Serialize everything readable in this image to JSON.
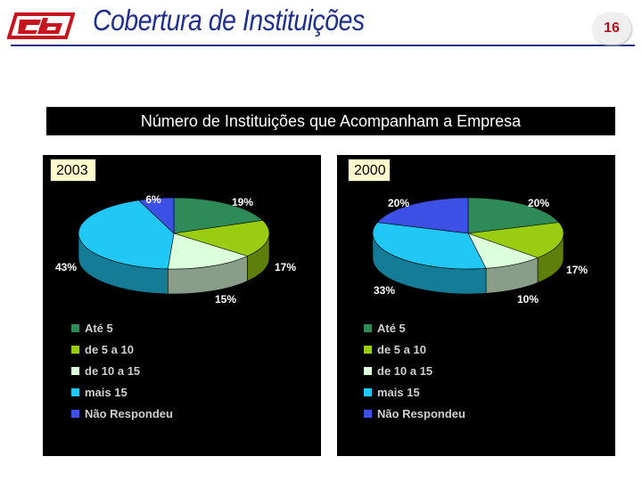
{
  "header": {
    "title": "Cobertura de Instituições",
    "page_number": "16"
  },
  "subtitle": "Número de Instituições que Acompanham a Empresa",
  "colors": {
    "title": "#1e2f8c",
    "brand_red": "#c8141e",
    "Até 5": "#2e8b57",
    "de 5 a 10": "#9acd12",
    "de 10 a 15": "#dcffdc",
    "mais 15": "#22c8f5",
    "Não Respondeu": "#3c50e6"
  },
  "chart_data": [
    {
      "type": "pie",
      "title": "2003",
      "categories": [
        "Até 5",
        "de 5 a 10",
        "de 10 a 15",
        "mais 15",
        "Não Respondeu"
      ],
      "values": [
        19,
        17,
        15,
        43,
        6
      ],
      "labels": [
        "19%",
        "17%",
        "15%",
        "43%",
        "6%"
      ],
      "legend": "bottom-left"
    },
    {
      "type": "pie",
      "title": "2000",
      "categories": [
        "Até 5",
        "de 5 a 10",
        "de 10 a 15",
        "mais 15",
        "Não Respondeu"
      ],
      "values": [
        20,
        17,
        10,
        33,
        20
      ],
      "labels": [
        "20%",
        "17%",
        "10%",
        "33%",
        "20%"
      ],
      "legend": "bottom-left"
    }
  ]
}
